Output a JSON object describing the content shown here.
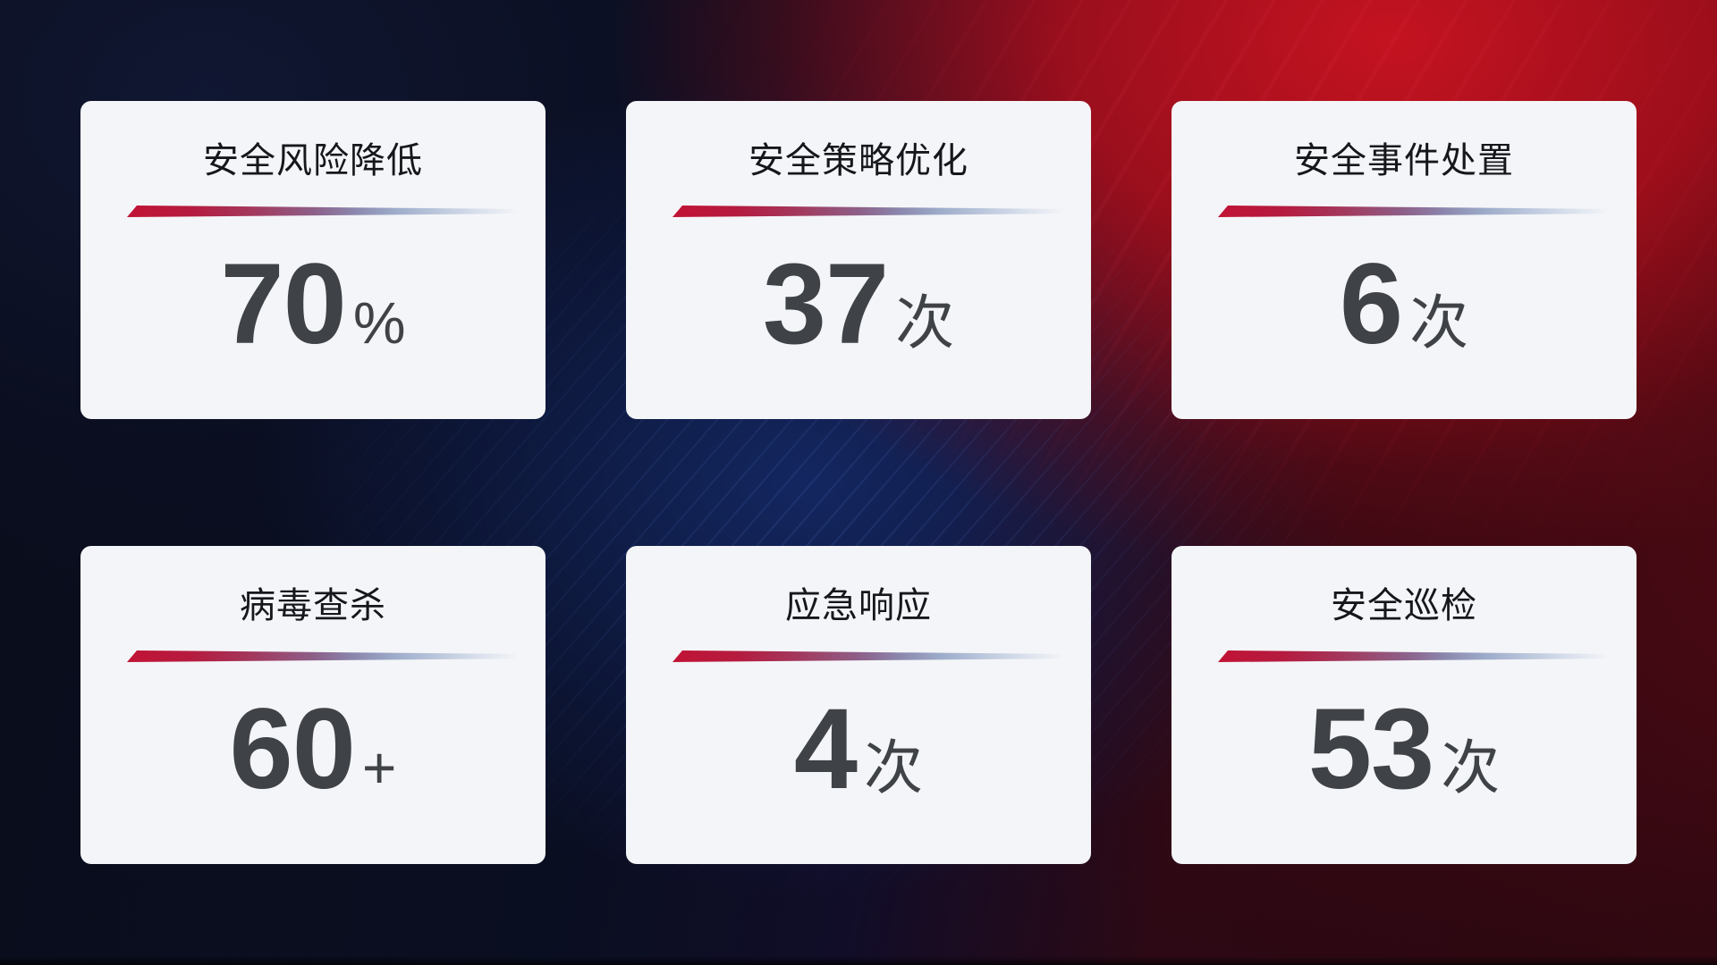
{
  "cards": [
    {
      "title": "安全风险降低",
      "value": "70",
      "unit": "%"
    },
    {
      "title": "安全策略优化",
      "value": "37",
      "unit": "次"
    },
    {
      "title": "安全事件处置",
      "value": "6",
      "unit": "次"
    },
    {
      "title": "病毒查杀",
      "value": "60",
      "unit": "+"
    },
    {
      "title": "应急响应",
      "value": "4",
      "unit": "次"
    },
    {
      "title": "安全巡检",
      "value": "53",
      "unit": "次"
    }
  ],
  "chart_data": {
    "type": "table",
    "categories": [
      "安全风险降低",
      "安全策略优化",
      "安全事件处置",
      "病毒查杀",
      "应急响应",
      "安全巡检"
    ],
    "values": [
      70,
      37,
      6,
      60,
      4,
      53
    ],
    "units": [
      "%",
      "次",
      "次",
      "+",
      "次",
      "次"
    ]
  },
  "colors": {
    "card_background": "#f4f5f8",
    "title_text": "#15171c",
    "value_text": "#3f4246",
    "divider_red_start": "#c11335",
    "divider_blue_mid": "#9cabc9",
    "background_red": "#b01120",
    "background_navy": "#0c1126",
    "background_blue_glow": "#142b6a",
    "background_maroon": "#2d060d"
  }
}
